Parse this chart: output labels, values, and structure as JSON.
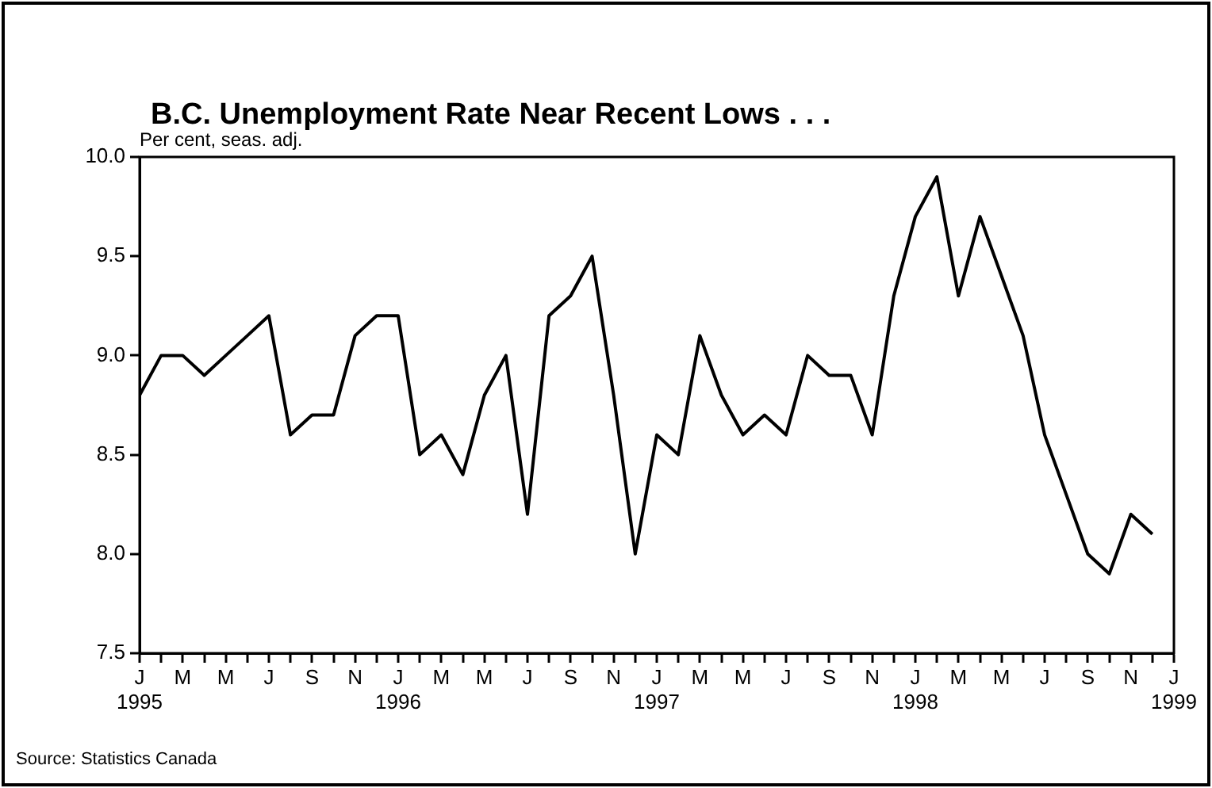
{
  "chart_data": {
    "type": "line",
    "title": "B.C. Unemployment Rate Near Recent Lows . . .",
    "ylabel": "Per cent, seas. adj.",
    "annotations": [
      "Source: Statistics Canada"
    ],
    "x": [
      "1995-01",
      "1995-02",
      "1995-03",
      "1995-04",
      "1995-05",
      "1995-06",
      "1995-07",
      "1995-08",
      "1995-09",
      "1995-10",
      "1995-11",
      "1995-12",
      "1996-01",
      "1996-02",
      "1996-03",
      "1996-04",
      "1996-05",
      "1996-06",
      "1996-07",
      "1996-08",
      "1996-09",
      "1996-10",
      "1996-11",
      "1996-12",
      "1997-01",
      "1997-02",
      "1997-03",
      "1997-04",
      "1997-05",
      "1997-06",
      "1997-07",
      "1997-08",
      "1997-09",
      "1997-10",
      "1997-11",
      "1997-12",
      "1998-01",
      "1998-02",
      "1998-03",
      "1998-04",
      "1998-05",
      "1998-06",
      "1998-07",
      "1998-08",
      "1998-09",
      "1998-10",
      "1998-11",
      "1998-12"
    ],
    "series": [
      {
        "color": "#000000",
        "values": [
          8.8,
          9.0,
          9.0,
          8.9,
          9.0,
          9.1,
          9.2,
          8.6,
          8.7,
          8.7,
          9.1,
          9.2,
          9.2,
          8.5,
          8.6,
          8.4,
          8.8,
          9.0,
          8.2,
          9.2,
          9.3,
          9.5,
          8.8,
          8.0,
          8.6,
          8.5,
          9.1,
          8.8,
          8.6,
          8.7,
          8.6,
          9.0,
          8.9,
          8.9,
          8.6,
          9.3,
          9.7,
          9.9,
          9.3,
          9.7,
          9.4,
          9.1,
          8.6,
          8.3,
          8.0,
          7.9,
          8.2,
          8.1
        ]
      }
    ],
    "xlim": [
      "1995-01",
      "1999-01"
    ],
    "xticks": [
      {
        "value": "1995-01",
        "label": "J\n1995"
      },
      {
        "value": "1995-02",
        "label": null
      },
      {
        "value": "1995-03",
        "label": "M"
      },
      {
        "value": "1995-04",
        "label": null
      },
      {
        "value": "1995-05",
        "label": "M"
      },
      {
        "value": "1995-06",
        "label": null
      },
      {
        "value": "1995-07",
        "label": "J"
      },
      {
        "value": "1995-08",
        "label": null
      },
      {
        "value": "1995-09",
        "label": "S"
      },
      {
        "value": "1995-10",
        "label": null
      },
      {
        "value": "1995-11",
        "label": "N"
      },
      {
        "value": "1995-12",
        "label": null
      },
      {
        "value": "1996-01",
        "label": "J\n1996"
      },
      {
        "value": "1996-02",
        "label": null
      },
      {
        "value": "1996-03",
        "label": "M"
      },
      {
        "value": "1996-04",
        "label": null
      },
      {
        "value": "1996-05",
        "label": "M"
      },
      {
        "value": "1996-06",
        "label": null
      },
      {
        "value": "1996-07",
        "label": "J"
      },
      {
        "value": "1996-08",
        "label": null
      },
      {
        "value": "1996-09",
        "label": "S"
      },
      {
        "value": "1996-10",
        "label": null
      },
      {
        "value": "1996-11",
        "label": "N"
      },
      {
        "value": "1996-12",
        "label": null
      },
      {
        "value": "1997-01",
        "label": "J\n1997"
      },
      {
        "value": "1997-02",
        "label": null
      },
      {
        "value": "1997-03",
        "label": "M"
      },
      {
        "value": "1997-04",
        "label": null
      },
      {
        "value": "1997-05",
        "label": "M"
      },
      {
        "value": "1997-06",
        "label": null
      },
      {
        "value": "1997-07",
        "label": "J"
      },
      {
        "value": "1997-08",
        "label": null
      },
      {
        "value": "1997-09",
        "label": "S"
      },
      {
        "value": "1997-10",
        "label": null
      },
      {
        "value": "1997-11",
        "label": "N"
      },
      {
        "value": "1997-12",
        "label": null
      },
      {
        "value": "1998-01",
        "label": "J\n1998"
      },
      {
        "value": "1998-02",
        "label": null
      },
      {
        "value": "1998-03",
        "label": "M"
      },
      {
        "value": "1998-04",
        "label": null
      },
      {
        "value": "1998-05",
        "label": "M"
      },
      {
        "value": "1998-06",
        "label": null
      },
      {
        "value": "1998-07",
        "label": "J"
      },
      {
        "value": "1998-08",
        "label": null
      },
      {
        "value": "1998-09",
        "label": "S"
      },
      {
        "value": "1998-10",
        "label": null
      },
      {
        "value": "1998-11",
        "label": "N"
      },
      {
        "value": "1998-12",
        "label": null
      },
      {
        "value": "1999-01",
        "label": "J\n1999"
      }
    ],
    "ylim": [
      7.5,
      10.0
    ],
    "yticks": [
      {
        "value": 7.5,
        "label": "7.5"
      },
      {
        "value": 8.0,
        "label": "8.0"
      },
      {
        "value": 8.5,
        "label": "8.5"
      },
      {
        "value": 9.0,
        "label": "9.0"
      },
      {
        "value": 9.5,
        "label": "9.5"
      },
      {
        "value": 10.0,
        "label": "10.0"
      }
    ],
    "grid": false,
    "legend": false,
    "marker": "none",
    "line_style": "solid"
  }
}
